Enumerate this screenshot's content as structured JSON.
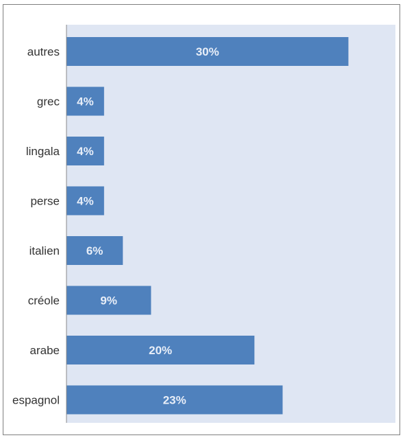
{
  "chart_data": {
    "type": "bar",
    "orientation": "horizontal",
    "categories": [
      "autres",
      "grec",
      "lingala",
      "perse",
      "italien",
      "créole",
      "arabe",
      "espagnol"
    ],
    "values": [
      30,
      4,
      4,
      4,
      6,
      9,
      20,
      23
    ],
    "value_labels": [
      "30%",
      "4%",
      "4%",
      "4%",
      "6%",
      "9%",
      "20%",
      "23%"
    ],
    "title": "",
    "xlabel": "",
    "ylabel": "",
    "xlim": [
      0,
      35
    ],
    "grid": false,
    "legend": "none",
    "colors": {
      "bar": "#4f81bd",
      "plot_background": "#dfe6f3",
      "axis": "#888888",
      "value_label": "#e8eef8",
      "category_label": "#333333"
    }
  }
}
